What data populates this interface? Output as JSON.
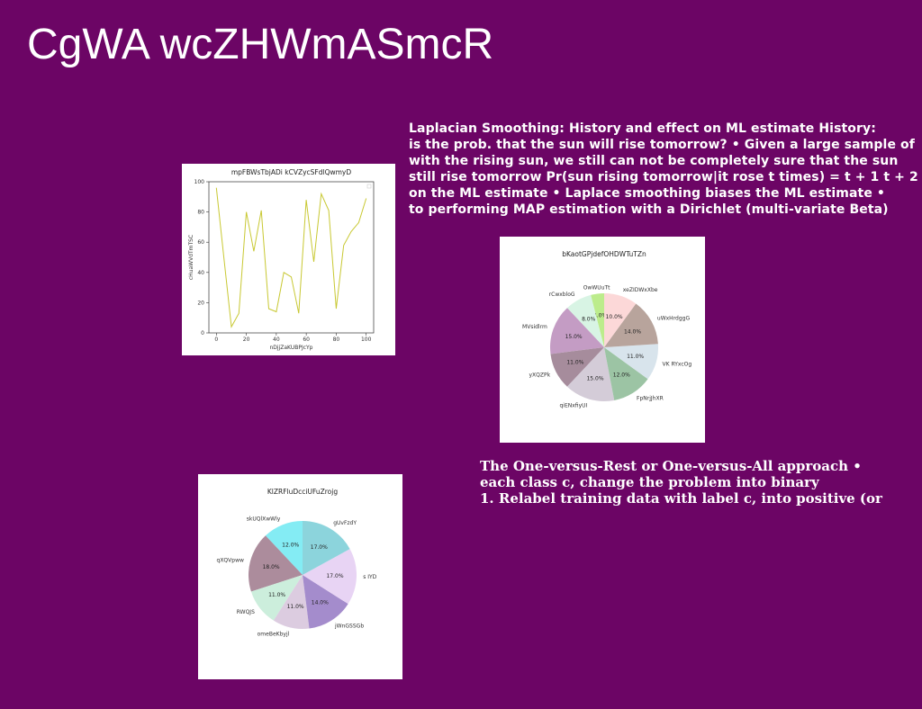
{
  "slide": {
    "title": "CgWA wcZHWmASmcR",
    "background": "#6c0565"
  },
  "text_block_1": {
    "lines": [
      "Laplacian Smoothing: History and effect on ML estimate History:",
      "is the prob. that the sun will rise tomorrow? • Given a large sample of",
      "with the rising sun, we still can not be completely sure that the sun",
      "still rise tomorrow Pr(sun rising tomorrow|it rose t times) = t + 1 t + 2",
      "on the ML estimate • Laplace smoothing biases the ML estimate •",
      "to performing MAP estimation with a Dirichlet (multi-variate Beta)"
    ]
  },
  "text_block_2": {
    "lines": [
      "The One-versus-Rest or One-versus-All approach •",
      "each class c, change the problem into binary",
      "1. Relabel training data with label c, into positive (or"
    ]
  },
  "chart_data": [
    {
      "type": "line",
      "title": "mpFBWsTbjADi kCVZycSFdlQwmyD",
      "xlabel": "nDjjZaKUBPJcYp",
      "ylabel": "cHuaWVdTmTSC",
      "x": [
        0,
        5,
        10,
        15,
        20,
        25,
        30,
        35,
        40,
        45,
        50,
        55,
        60,
        65,
        70,
        75,
        80,
        85,
        90,
        95,
        100
      ],
      "y": [
        96,
        50,
        4,
        13,
        80,
        54,
        81,
        16,
        14,
        40,
        37,
        13,
        88,
        47,
        92,
        81,
        16,
        58,
        67,
        73,
        89
      ],
      "xticks": [
        0,
        20,
        40,
        60,
        80,
        100
      ],
      "yticks": [
        0,
        20,
        40,
        60,
        80,
        100
      ],
      "xlim": [
        -5,
        105
      ],
      "ylim": [
        0,
        100
      ],
      "line_color": "#c8c832",
      "grid": false
    },
    {
      "type": "pie",
      "title": "bKaotGPjdefOHDWTuTZn",
      "labels": [
        "OwWUuTt",
        "rCwxbloG",
        "MVsidlrm",
        "yXQZPk",
        "qiENxfiyUI",
        "FpNrjJhXR",
        "VK RYxcOg",
        "uWxHrdggG",
        "xeZIDWxXbe"
      ],
      "values": [
        4.0,
        8.0,
        15.0,
        11.0,
        15.0,
        12.0,
        11.0,
        14.0,
        10.0
      ],
      "pct_labels": [
        "4.0%",
        "8.0%",
        "15.0%",
        "11.0%",
        "15.0%",
        "12.0%",
        "11.0%",
        "14.0%",
        "10.0%"
      ],
      "colors": [
        "#bcec8c",
        "#d8f4e4",
        "#c49cc4",
        "#a68c9c",
        "#d4ccd8",
        "#9cc4a4",
        "#d8e4ec",
        "#b8a49c",
        "#fcd8d8"
      ]
    },
    {
      "type": "pie",
      "title": "KlZRFluDcciUFuZrojg",
      "labels": [
        "skUQlXwWly",
        "qXQVpww",
        "RWQJS",
        "omeBeKbyjl",
        "jWnGSSGb",
        "s IYD",
        "gUvFzdY"
      ],
      "values": [
        12.0,
        18.0,
        11.0,
        11.0,
        14.0,
        17.0,
        17.0
      ],
      "pct_labels": [
        "12.0%",
        "18.0%",
        "11.0%",
        "11.0%",
        "14.0%",
        "17.0%",
        "17.0%"
      ],
      "colors": [
        "#84ecf4",
        "#ac8c9c",
        "#cceedc",
        "#dccce0",
        "#a48ccc",
        "#e8d4f4",
        "#8cd4dc"
      ]
    }
  ]
}
